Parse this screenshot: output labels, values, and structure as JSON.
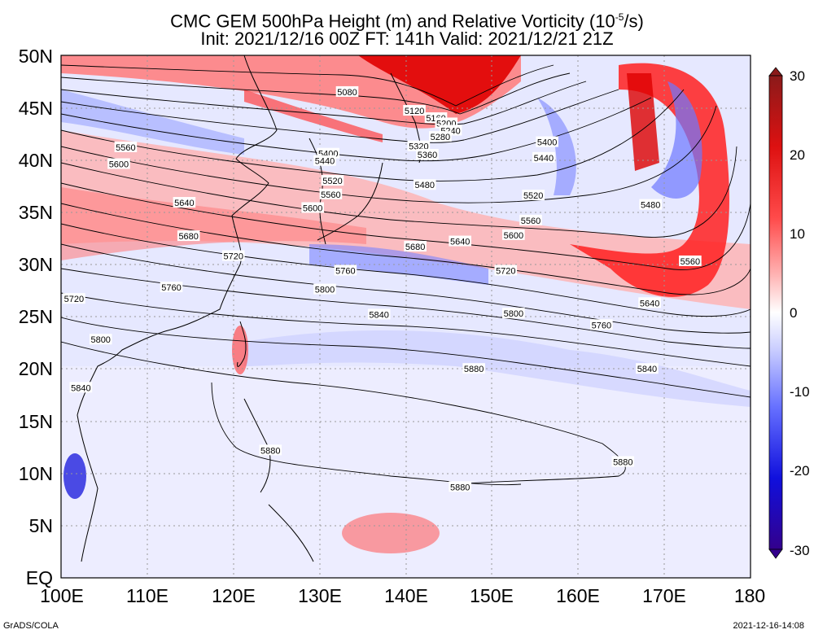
{
  "title": {
    "line1": "CMC GEM 500hPa Height (m) and Relative Vorticity (10",
    "line1_sup": "-5",
    "line1_end": "/s)",
    "line2": "Init: 2021/12/16 00Z  FT: 141h  Valid: 2021/12/21 21Z"
  },
  "latitude_labels": [
    "50N",
    "45N",
    "40N",
    "35N",
    "30N",
    "25N",
    "20N",
    "15N",
    "10N",
    "5N",
    "EQ"
  ],
  "longitude_labels": [
    "100E",
    "110E",
    "120E",
    "130E",
    "140E",
    "150E",
    "160E",
    "170E",
    "180"
  ],
  "colorbar": {
    "ticks": [
      "30",
      "20",
      "10",
      "0",
      "-10",
      "-20",
      "-30"
    ],
    "colors_top_to_bottom": [
      "#8b1a1a",
      "#cc0000",
      "#ff3333",
      "#ff9999",
      "#ffe0e0",
      "#ffffff",
      "#dde0ff",
      "#8c96ff",
      "#3333ff",
      "#0000cc",
      "#33008c"
    ]
  },
  "contour_labels": [
    {
      "text": "5080",
      "lon": 133.2,
      "lat": 46.5
    },
    {
      "text": "5120",
      "lon": 141.0,
      "lat": 44.7
    },
    {
      "text": "5160",
      "lon": 143.5,
      "lat": 44.0
    },
    {
      "text": "5200",
      "lon": 144.7,
      "lat": 43.5
    },
    {
      "text": "5240",
      "lon": 145.2,
      "lat": 42.8
    },
    {
      "text": "5280",
      "lon": 144.0,
      "lat": 42.2
    },
    {
      "text": "5320",
      "lon": 141.5,
      "lat": 41.3
    },
    {
      "text": "5360",
      "lon": 142.5,
      "lat": 40.5
    },
    {
      "text": "5400",
      "lon": 131.0,
      "lat": 40.6
    },
    {
      "text": "5440",
      "lon": 130.6,
      "lat": 39.9
    },
    {
      "text": "5520",
      "lon": 131.5,
      "lat": 38.0
    },
    {
      "text": "5560",
      "lon": 131.3,
      "lat": 36.7
    },
    {
      "text": "5600",
      "lon": 129.2,
      "lat": 35.4
    },
    {
      "text": "5480",
      "lon": 142.2,
      "lat": 37.6
    },
    {
      "text": "5560",
      "lon": 107.5,
      "lat": 41.2
    },
    {
      "text": "5600",
      "lon": 106.7,
      "lat": 39.6
    },
    {
      "text": "5640",
      "lon": 114.3,
      "lat": 35.9
    },
    {
      "text": "5680",
      "lon": 114.8,
      "lat": 32.7
    },
    {
      "text": "5720",
      "lon": 120.0,
      "lat": 30.8
    },
    {
      "text": "5760",
      "lon": 112.8,
      "lat": 27.8
    },
    {
      "text": "5720",
      "lon": 101.5,
      "lat": 26.7
    },
    {
      "text": "5800",
      "lon": 104.6,
      "lat": 22.8
    },
    {
      "text": "5840",
      "lon": 102.3,
      "lat": 18.2
    },
    {
      "text": "5680",
      "lon": 141.1,
      "lat": 31.7
    },
    {
      "text": "5640",
      "lon": 146.3,
      "lat": 32.2
    },
    {
      "text": "5760",
      "lon": 133.0,
      "lat": 29.4
    },
    {
      "text": "5800",
      "lon": 130.6,
      "lat": 27.6
    },
    {
      "text": "5720",
      "lon": 151.6,
      "lat": 29.4
    },
    {
      "text": "5840",
      "lon": 136.9,
      "lat": 25.2
    },
    {
      "text": "5800",
      "lon": 152.5,
      "lat": 25.3
    },
    {
      "text": "5760",
      "lon": 162.7,
      "lat": 24.2
    },
    {
      "text": "5400",
      "lon": 156.4,
      "lat": 41.7
    },
    {
      "text": "5440",
      "lon": 156.0,
      "lat": 40.2
    },
    {
      "text": "5520",
      "lon": 154.8,
      "lat": 36.6
    },
    {
      "text": "5560",
      "lon": 154.5,
      "lat": 34.2
    },
    {
      "text": "5600",
      "lon": 152.5,
      "lat": 32.8
    },
    {
      "text": "5480",
      "lon": 168.4,
      "lat": 35.7
    },
    {
      "text": "5560",
      "lon": 173.0,
      "lat": 30.3
    },
    {
      "text": "5640",
      "lon": 168.3,
      "lat": 26.3
    },
    {
      "text": "5880",
      "lon": 147.9,
      "lat": 20.0
    },
    {
      "text": "5840",
      "lon": 168.0,
      "lat": 20.0
    },
    {
      "text": "5880",
      "lon": 124.3,
      "lat": 12.2
    },
    {
      "text": "5880",
      "lon": 165.2,
      "lat": 11.1
    },
    {
      "text": "5880",
      "lon": 146.3,
      "lat": 8.7
    }
  ],
  "footer": {
    "left": "GrADS/COLA",
    "right": "2021-12-16-14:08"
  }
}
